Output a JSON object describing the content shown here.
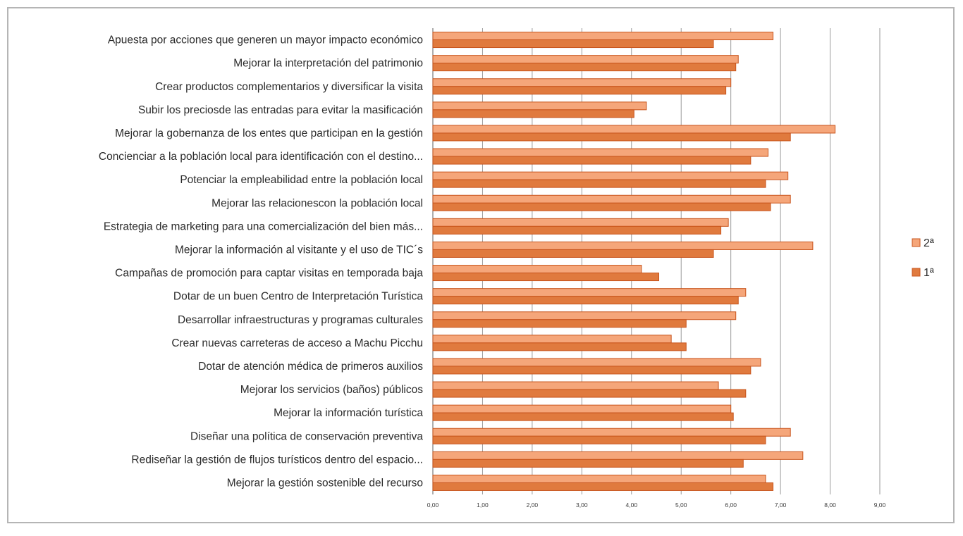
{
  "chart_data": {
    "type": "bar",
    "orientation": "horizontal",
    "title": "",
    "xlabel": "",
    "ylabel": "",
    "xlim": [
      0,
      9
    ],
    "grid": true,
    "legend_position": "right",
    "x_ticks": [
      "0,00",
      "1,00",
      "2,00",
      "3,00",
      "4,00",
      "5,00",
      "6,00",
      "7,00",
      "8,00",
      "9,00"
    ],
    "categories": [
      "Apuesta por  acciones que generen un mayor impacto económico",
      "Mejorar la interpretación del patrimonio",
      "Crear productos complementarios y diversificar la visita",
      "Subir los preciosde las entradas para evitar la masificación",
      "Mejorar la gobernanza de los entes que participan en la gestión",
      "Concienciar a la población local para identificación con el destino...",
      "Potenciar la empleabilidad  entre la población local",
      "Mejorar las relacionescon la población local",
      "Estrategia de marketing para una comercialización del bien más...",
      "Mejorar la información al visitante  y el uso de TIC´s",
      "Campañas de promoción para captar visitas  en temporada baja",
      "Dotar de un buen Centro de Interpretación Turística",
      "Desarrollar infraestructuras y programas culturales",
      "Crear nuevas carreteras de acceso a Machu Picchu",
      "Dotar de atención  médica de primeros auxilios",
      "Mejorar los servicios (baños) públicos",
      "Mejorar la información turística",
      "Diseñar una política de conservación preventiva",
      "Rediseñar la gestión de flujos turísticos dentro del espacio...",
      "Mejorar la gestión  sostenible del recurso"
    ],
    "series": [
      {
        "name": "2ª",
        "color": "#f5a67a",
        "values": [
          6.85,
          6.15,
          6.0,
          4.3,
          8.1,
          6.75,
          7.15,
          7.2,
          5.95,
          7.65,
          4.2,
          6.3,
          6.1,
          4.8,
          6.6,
          5.75,
          6.0,
          7.2,
          7.45,
          6.7
        ]
      },
      {
        "name": "1ª",
        "color": "#e07a3e",
        "values": [
          5.65,
          6.1,
          5.9,
          4.05,
          7.2,
          6.4,
          6.7,
          6.8,
          5.8,
          5.65,
          4.55,
          6.15,
          5.1,
          5.1,
          6.4,
          6.3,
          6.05,
          6.7,
          6.25,
          6.85
        ]
      }
    ]
  },
  "colors": {
    "grid": "#9a9a9a",
    "bar_border": "#c8541c",
    "frame": "#b5b5b5"
  }
}
